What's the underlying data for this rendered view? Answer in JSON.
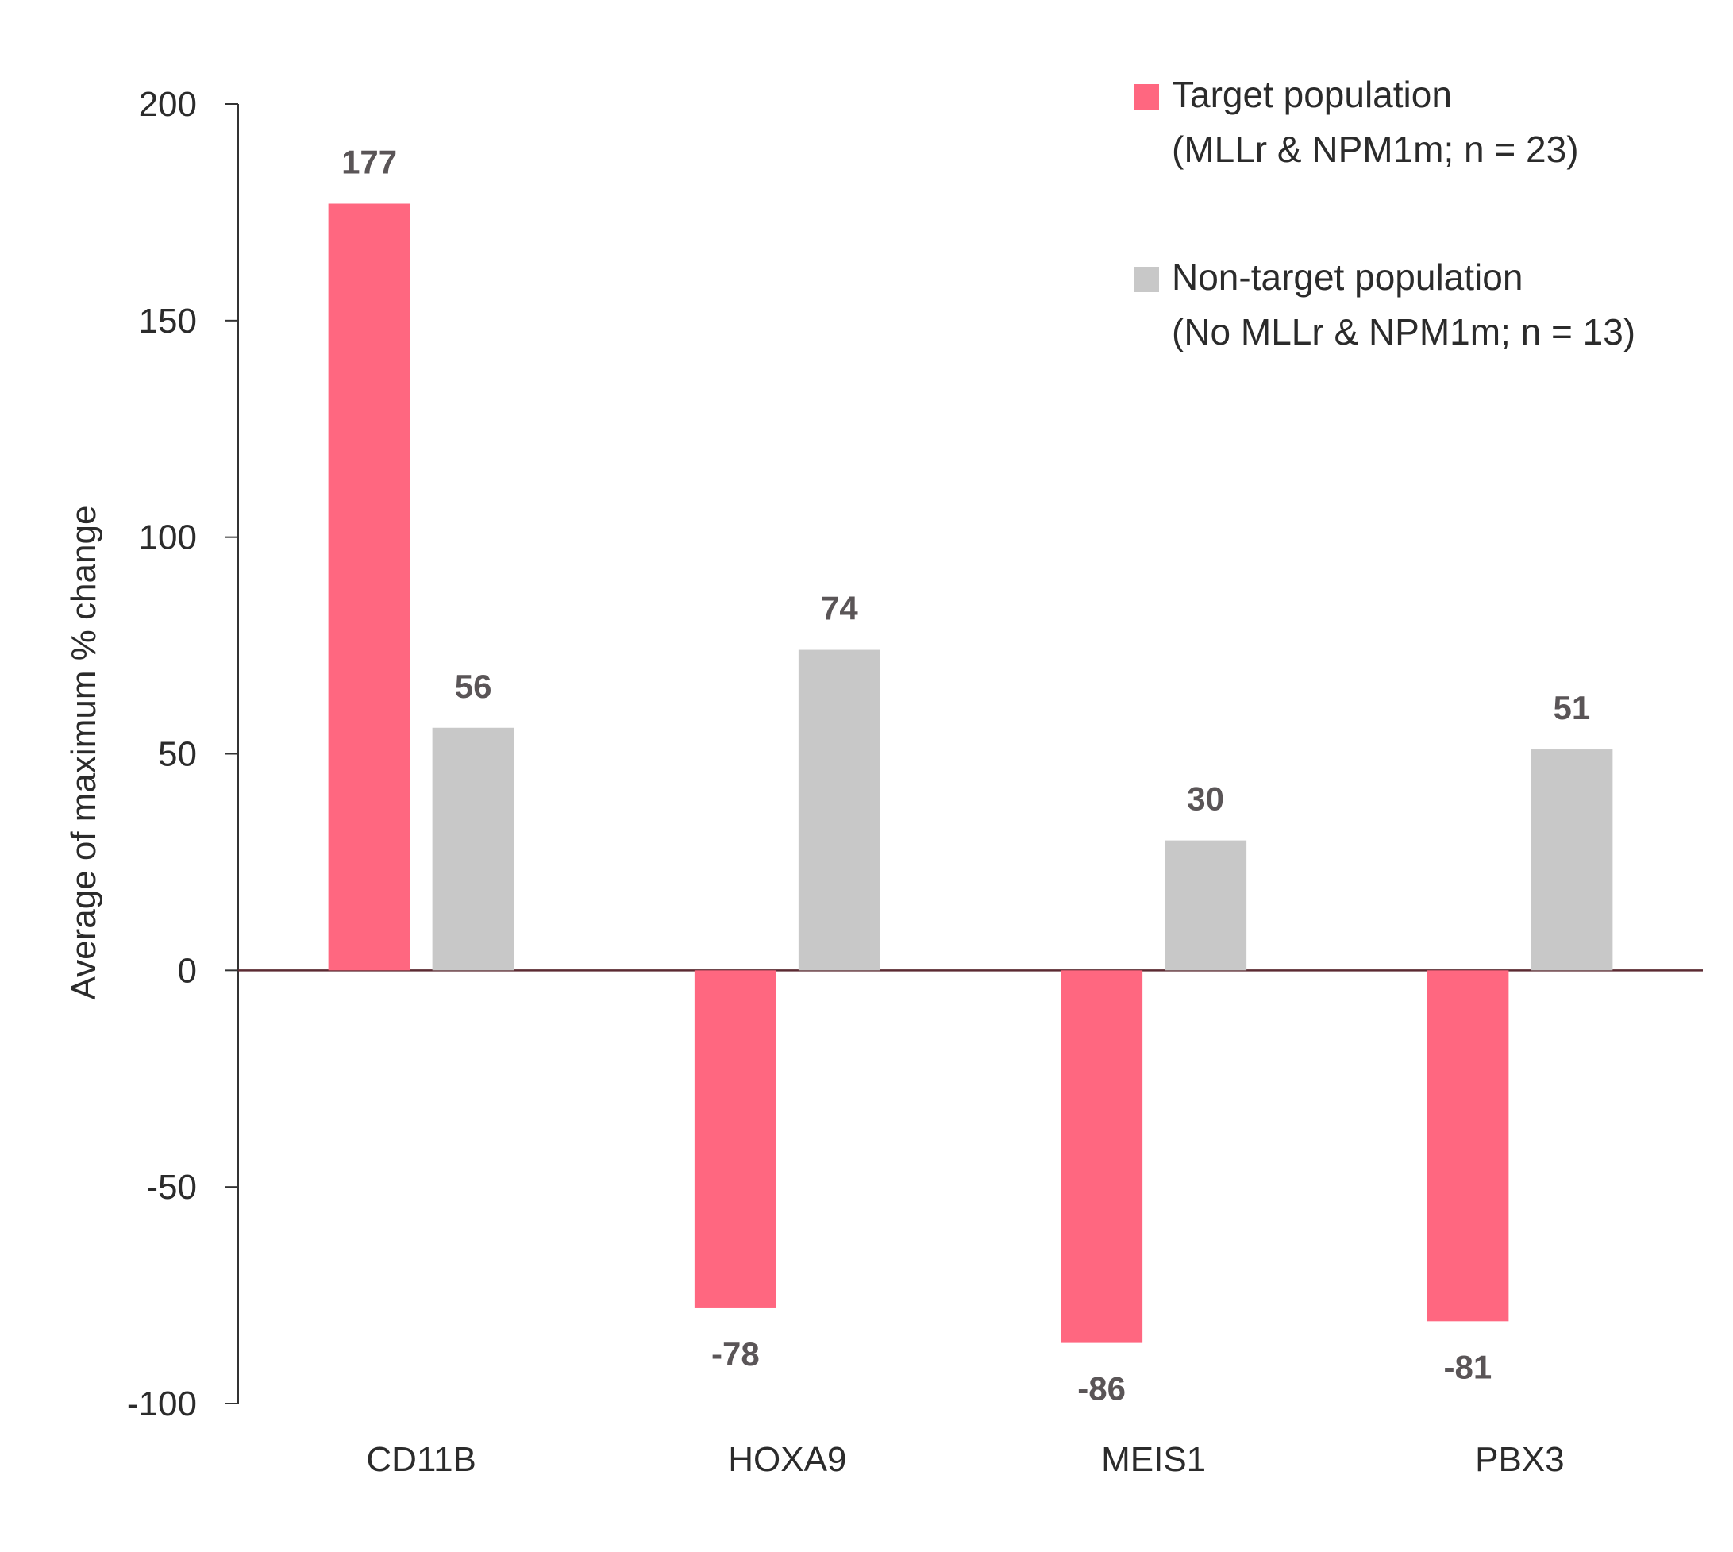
{
  "chart_data": {
    "type": "bar",
    "title": "",
    "xlabel": "",
    "ylabel": "Average of maximum % change",
    "ylim": [
      -100,
      200
    ],
    "yticks": [
      200,
      150,
      100,
      50,
      0,
      -50,
      -100
    ],
    "categories": [
      "CD11B",
      "HOXA9",
      "MEIS1",
      "PBX3"
    ],
    "series": [
      {
        "name": "Target population",
        "name_line2": "(MLLr & NPM1m; n = 23)",
        "color": "#ff6780",
        "values": [
          177,
          -78,
          -86,
          -81
        ]
      },
      {
        "name": "Non-target population",
        "name_line2": "(No MLLr & NPM1m; n = 13)",
        "color": "#c8c8c8",
        "values": [
          56,
          74,
          30,
          51
        ]
      }
    ],
    "legend_position": "top-right",
    "grid": false,
    "data_labels": true
  }
}
